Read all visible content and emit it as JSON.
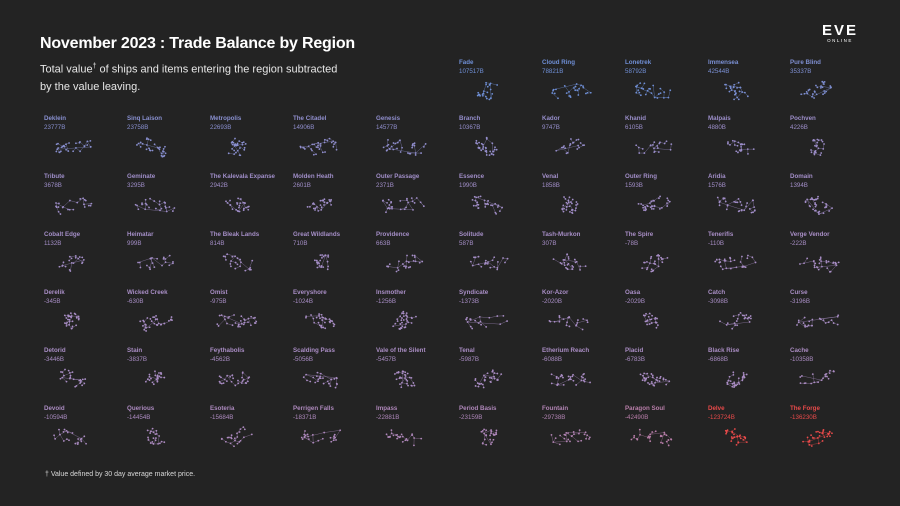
{
  "header": {
    "title": "November 2023 : Trade Balance by Region",
    "subtitle_part1": "Total value",
    "subtitle_mark": "†",
    "subtitle_part2": " of ships and items entering the region subtracted by the value leaving.",
    "footnote": "† Value defined by 30 day average market price.",
    "logo_text": "EVE",
    "logo_subtext": "ONLINE"
  },
  "colors": {
    "background": "#232323",
    "positive_high": "#6f8fd6",
    "neutral": "#a98ec6",
    "negative_high": "#e84a4a"
  },
  "chart_data": {
    "type": "table",
    "title": "November 2023 : Trade Balance by Region",
    "layout": "small multiples, 10 columns, sorted by value descending",
    "regions": [
      {
        "name": "Fade",
        "value_label": "107517B",
        "value": 107517
      },
      {
        "name": "Cloud Ring",
        "value_label": "78821B",
        "value": 78821
      },
      {
        "name": "Lonetrek",
        "value_label": "58792B",
        "value": 58792
      },
      {
        "name": "Immensea",
        "value_label": "42544B",
        "value": 42544
      },
      {
        "name": "Pure Blind",
        "value_label": "35337B",
        "value": 35337
      },
      {
        "name": "Deklein",
        "value_label": "23777B",
        "value": 23777
      },
      {
        "name": "Sinq Laison",
        "value_label": "23758B",
        "value": 23758
      },
      {
        "name": "Metropolis",
        "value_label": "22693B",
        "value": 22693
      },
      {
        "name": "The Citadel",
        "value_label": "14906B",
        "value": 14906
      },
      {
        "name": "Genesis",
        "value_label": "14577B",
        "value": 14577
      },
      {
        "name": "Branch",
        "value_label": "10367B",
        "value": 10367
      },
      {
        "name": "Kador",
        "value_label": "9747B",
        "value": 9747
      },
      {
        "name": "Khanid",
        "value_label": "6105B",
        "value": 6105
      },
      {
        "name": "Malpais",
        "value_label": "4880B",
        "value": 4880
      },
      {
        "name": "Pochven",
        "value_label": "4226B",
        "value": 4226
      },
      {
        "name": "Tribute",
        "value_label": "3678B",
        "value": 3678
      },
      {
        "name": "Geminate",
        "value_label": "3295B",
        "value": 3295
      },
      {
        "name": "The Kalevala Expanse",
        "value_label": "2942B",
        "value": 2942
      },
      {
        "name": "Molden Heath",
        "value_label": "2601B",
        "value": 2601
      },
      {
        "name": "Outer Passage",
        "value_label": "2371B",
        "value": 2371
      },
      {
        "name": "Essence",
        "value_label": "1990B",
        "value": 1990
      },
      {
        "name": "Venal",
        "value_label": "1858B",
        "value": 1858
      },
      {
        "name": "Outer Ring",
        "value_label": "1593B",
        "value": 1593
      },
      {
        "name": "Aridia",
        "value_label": "1576B",
        "value": 1576
      },
      {
        "name": "Domain",
        "value_label": "1394B",
        "value": 1394
      },
      {
        "name": "Cobalt Edge",
        "value_label": "1132B",
        "value": 1132
      },
      {
        "name": "Heimatar",
        "value_label": "999B",
        "value": 999
      },
      {
        "name": "The Bleak Lands",
        "value_label": "814B",
        "value": 814
      },
      {
        "name": "Great Wildlands",
        "value_label": "710B",
        "value": 710
      },
      {
        "name": "Providence",
        "value_label": "663B",
        "value": 663
      },
      {
        "name": "Solitude",
        "value_label": "587B",
        "value": 587
      },
      {
        "name": "Tash-Murkon",
        "value_label": "307B",
        "value": 307
      },
      {
        "name": "The Spire",
        "value_label": "-78B",
        "value": -78
      },
      {
        "name": "Tenerifis",
        "value_label": "-110B",
        "value": -110
      },
      {
        "name": "Verge Vendor",
        "value_label": "-222B",
        "value": -222
      },
      {
        "name": "Derelik",
        "value_label": "-345B",
        "value": -345
      },
      {
        "name": "Wicked Creek",
        "value_label": "-630B",
        "value": -630
      },
      {
        "name": "Omist",
        "value_label": "-975B",
        "value": -975
      },
      {
        "name": "Everyshore",
        "value_label": "-1024B",
        "value": -1024
      },
      {
        "name": "Insmother",
        "value_label": "-1256B",
        "value": -1256
      },
      {
        "name": "Syndicate",
        "value_label": "-1373B",
        "value": -1373
      },
      {
        "name": "Kor-Azor",
        "value_label": "-2020B",
        "value": -2020
      },
      {
        "name": "Oasa",
        "value_label": "-2029B",
        "value": -2029
      },
      {
        "name": "Catch",
        "value_label": "-3098B",
        "value": -3098
      },
      {
        "name": "Curse",
        "value_label": "-3196B",
        "value": -3196
      },
      {
        "name": "Detorid",
        "value_label": "-3446B",
        "value": -3446
      },
      {
        "name": "Stain",
        "value_label": "-3837B",
        "value": -3837
      },
      {
        "name": "Feythabolis",
        "value_label": "-4562B",
        "value": -4562
      },
      {
        "name": "Scalding Pass",
        "value_label": "-5056B",
        "value": -5056
      },
      {
        "name": "Vale of the Silent",
        "value_label": "-5457B",
        "value": -5457
      },
      {
        "name": "Tenal",
        "value_label": "-5987B",
        "value": -5987
      },
      {
        "name": "Etherium Reach",
        "value_label": "-6088B",
        "value": -6088
      },
      {
        "name": "Placid",
        "value_label": "-6783B",
        "value": -6783
      },
      {
        "name": "Black Rise",
        "value_label": "-6868B",
        "value": -6868
      },
      {
        "name": "Cache",
        "value_label": "-10358B",
        "value": -10358
      },
      {
        "name": "Devoid",
        "value_label": "-10594B",
        "value": -10594
      },
      {
        "name": "Querious",
        "value_label": "-14454B",
        "value": -14454
      },
      {
        "name": "Esoteria",
        "value_label": "-15684B",
        "value": -15684
      },
      {
        "name": "Perrigen Falls",
        "value_label": "-18371B",
        "value": -18371
      },
      {
        "name": "Impass",
        "value_label": "-22881B",
        "value": -22881
      },
      {
        "name": "Period Basis",
        "value_label": "-23159B",
        "value": -23159
      },
      {
        "name": "Fountain",
        "value_label": "-29738B",
        "value": -29738
      },
      {
        "name": "Paragon Soul",
        "value_label": "-42490B",
        "value": -42490
      },
      {
        "name": "Delve",
        "value_label": "-123724B",
        "value": -123724
      },
      {
        "name": "The Forge",
        "value_label": "-136230B",
        "value": -136230
      }
    ]
  }
}
